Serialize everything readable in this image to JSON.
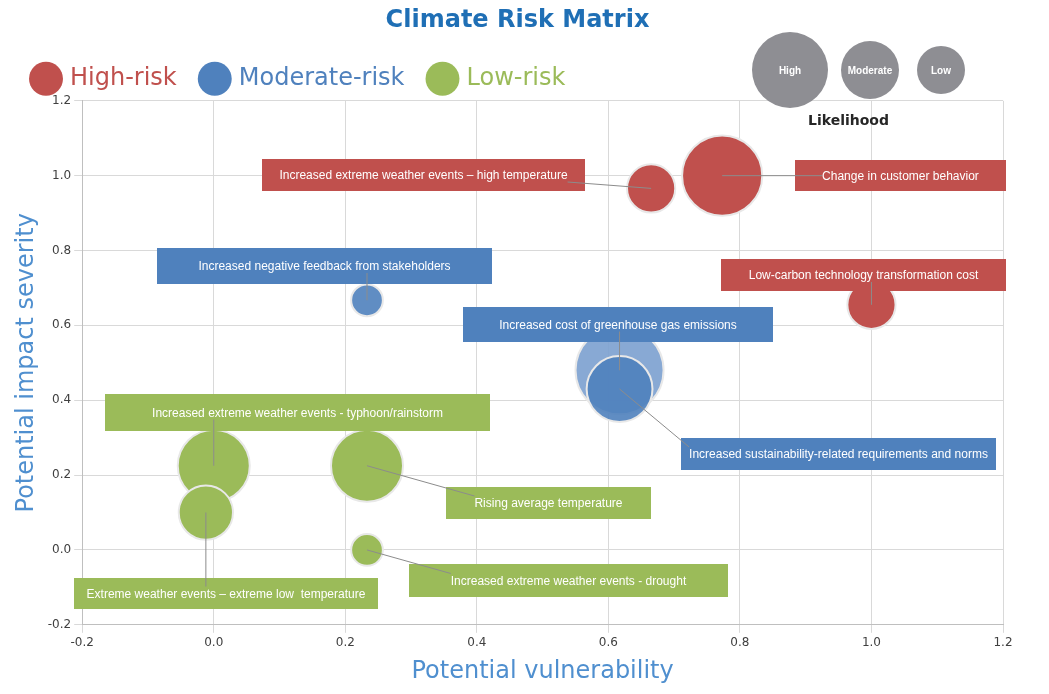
{
  "chart_data": {
    "type": "bubble",
    "title": "Climate Risk Matrix",
    "xlabel": "Potential vulnerability",
    "ylabel": "Potential impact severity",
    "xlim": [
      -0.2,
      1.2
    ],
    "xticks": [
      -0.2,
      {
        "value": 0,
        "label": "0.0"
      },
      0.2,
      0.4,
      0.6,
      0.8,
      {
        "value": 1,
        "label": "1.0"
      },
      1.2
    ],
    "ylim": [
      -0.2,
      1.2
    ],
    "yticks": [
      -0.2,
      {
        "value": 0,
        "label": "0.0"
      },
      0.2,
      0.4,
      0.6,
      0.8,
      {
        "value": 1,
        "label": "1.0"
      },
      1.2
    ],
    "grid": true,
    "legend": "top",
    "series": [
      {
        "name": "High-risk",
        "color": "#c0504d",
        "x": [
          0.665,
          0.773,
          1.0
        ],
        "values": [
          0.966,
          1.0,
          0.655
        ],
        "sizes": [
          0.3,
          0.83,
          0.3
        ]
      },
      {
        "name": "Moderate-risk",
        "color": "#4f81bd",
        "colors": [
          "#4f81bd",
          "#7ba0cf",
          "#4f81bd"
        ],
        "x": [
          0.233,
          0.617,
          0.617
        ],
        "values": [
          0.667,
          0.48,
          0.43
        ],
        "sizes": [
          0.13,
          1,
          0.56
        ]
      },
      {
        "name": "Low-risk",
        "color": "#9bbb59",
        "x": [
          0.0,
          -0.012,
          0.233,
          0.233
        ],
        "values": [
          0.225,
          0.1,
          0.225,
          0.0
        ],
        "sizes": [
          0.67,
          0.38,
          0.67,
          0.13
        ]
      }
    ],
    "annotations": [
      {
        "text": "Increased extreme weather events – high temperature",
        "x": 0.665,
        "y": 0.966
      },
      {
        "text": "Change in customer behavior",
        "x": 0.773,
        "y": 1.0
      },
      {
        "text": "Low-carbon technology transformation cost",
        "x": 1.0,
        "y": 0.655
      },
      {
        "text": "Increased negative feedback from stakeholders",
        "x": 0.233,
        "y": 0.667
      },
      {
        "text": "Increased cost of greenhouse gas emissions",
        "x": 0.617,
        "y": 0.48
      },
      {
        "text": "Increased sustainability-related requirements and norms",
        "x": 0.617,
        "y": 0.43
      },
      {
        "text": "Increased extreme weather events - typhoon/rainstorm",
        "x": 0.0,
        "y": 0.225
      },
      {
        "text": "Rising average temperature",
        "x": 0.233,
        "y": 0.225
      },
      {
        "text": "Increased extreme weather events - drought",
        "x": 0.233,
        "y": 0.0
      },
      {
        "text": "Extreme weather events – extreme low  temperature",
        "x": -0.012,
        "y": 0.1
      },
      "High",
      "Moderate",
      "Low",
      "Likelihood"
    ]
  }
}
